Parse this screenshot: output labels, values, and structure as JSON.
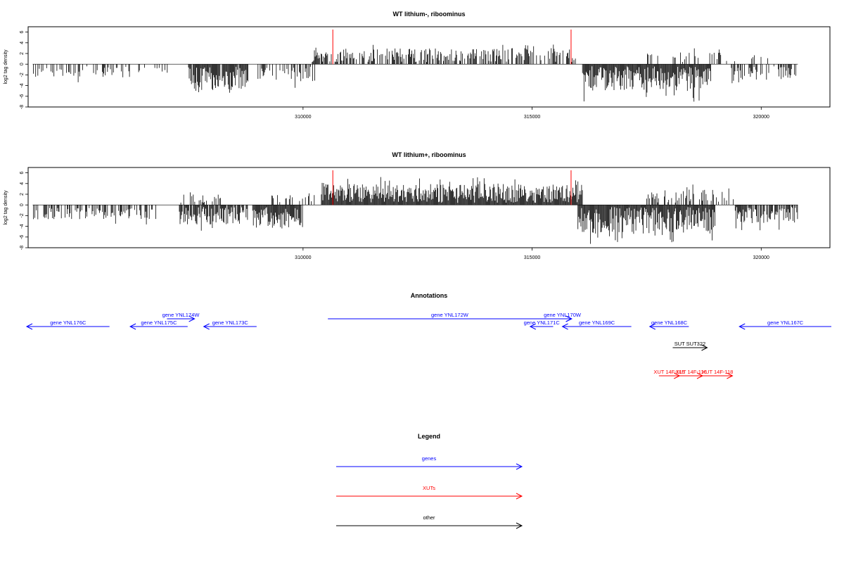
{
  "chart_data": [
    {
      "type": "bar",
      "title": "WT lithium-, riboominus",
      "ylabel": "log2 tag density",
      "xlim": [
        304000,
        321500
      ],
      "ylim": [
        -8,
        7
      ],
      "x_ticks": [
        310000,
        315000,
        320000
      ],
      "y_ticks": [
        6,
        4,
        2,
        0,
        -2,
        -4,
        -6,
        -8
      ],
      "marker_color": "#ff0000",
      "markers": [
        310650,
        315850
      ],
      "segments": [
        {
          "x_start": 304100,
          "x_end": 306300,
          "direction": "minus",
          "amplitude": 2.2,
          "density": 0.35
        },
        {
          "x_start": 306300,
          "x_end": 307300,
          "direction": "minus",
          "amplitude": 1.2,
          "density": 0.15
        },
        {
          "x_start": 307500,
          "x_end": 308800,
          "direction": "minus",
          "amplitude": 4.6,
          "density": 0.95
        },
        {
          "x_start": 309000,
          "x_end": 309600,
          "direction": "minus",
          "amplitude": 2.6,
          "density": 0.45
        },
        {
          "x_start": 309600,
          "x_end": 310300,
          "direction": "minus",
          "amplitude": 3.0,
          "density": 0.55
        },
        {
          "x_start": 310200,
          "x_end": 315950,
          "direction": "plus",
          "amplitude": 2.6,
          "density": 0.6
        },
        {
          "x_start": 316100,
          "x_end": 318900,
          "direction": "minus",
          "amplitude": 4.6,
          "density": 1.0
        },
        {
          "x_start": 319300,
          "x_end": 320800,
          "direction": "minus",
          "amplitude": 2.5,
          "density": 0.5
        },
        {
          "x_start": 317500,
          "x_end": 320200,
          "direction": "plus",
          "amplitude": 1.8,
          "density": 0.15
        }
      ]
    },
    {
      "type": "bar",
      "title": "WT lithium+, riboominus",
      "ylabel": "log2 tag density",
      "xlim": [
        304000,
        321500
      ],
      "ylim": [
        -8,
        7
      ],
      "x_ticks": [
        310000,
        315000,
        320000
      ],
      "y_ticks": [
        6,
        4,
        2,
        0,
        -2,
        -4,
        -6,
        -8
      ],
      "marker_color": "#ff0000",
      "markers": [
        310650,
        315850
      ],
      "segments": [
        {
          "x_start": 304100,
          "x_end": 306800,
          "direction": "minus",
          "amplitude": 2.3,
          "density": 0.55
        },
        {
          "x_start": 307300,
          "x_end": 308800,
          "direction": "minus",
          "amplitude": 3.3,
          "density": 0.8
        },
        {
          "x_start": 307300,
          "x_end": 308500,
          "direction": "plus",
          "amplitude": 1.6,
          "density": 0.2
        },
        {
          "x_start": 308900,
          "x_end": 310000,
          "direction": "minus",
          "amplitude": 4.0,
          "density": 0.95
        },
        {
          "x_start": 309300,
          "x_end": 310300,
          "direction": "plus",
          "amplitude": 1.8,
          "density": 0.2
        },
        {
          "x_start": 310400,
          "x_end": 316100,
          "direction": "plus",
          "amplitude": 3.5,
          "density": 1.0
        },
        {
          "x_start": 316000,
          "x_end": 319000,
          "direction": "minus",
          "amplitude": 5.0,
          "density": 1.0
        },
        {
          "x_start": 317500,
          "x_end": 319400,
          "direction": "plus",
          "amplitude": 2.6,
          "density": 0.45
        },
        {
          "x_start": 319400,
          "x_end": 320800,
          "direction": "minus",
          "amplitude": 3.0,
          "density": 0.75
        }
      ]
    }
  ],
  "annotations": {
    "title": "Annotations",
    "features": [
      {
        "label": "gene YNL176C",
        "start": 304000,
        "end": 305800,
        "strand": "-",
        "color": "#0000ff",
        "row": 1
      },
      {
        "label": "gene YNL175C",
        "start": 306250,
        "end": 307500,
        "strand": "-",
        "color": "#0000ff",
        "row": 1
      },
      {
        "label": "gene YNL174W",
        "start": 307050,
        "end": 307650,
        "strand": "+",
        "color": "#0000ff",
        "row": 0
      },
      {
        "label": "gene YNL173C",
        "start": 307850,
        "end": 309000,
        "strand": "-",
        "color": "#0000ff",
        "row": 1
      },
      {
        "label": "gene YNL172W",
        "start": 310550,
        "end": 315850,
        "strand": "+",
        "color": "#0000ff",
        "row": 0
      },
      {
        "label": "gene YNL171C",
        "start": 314950,
        "end": 315450,
        "strand": "-",
        "color": "#0000ff",
        "row": 1
      },
      {
        "label": "gene YNL170W",
        "start": 315450,
        "end": 315850,
        "strand": "+",
        "color": "#0000ff",
        "row": 0
      },
      {
        "label": "gene YNL169C",
        "start": 315650,
        "end": 317150,
        "strand": "-",
        "color": "#0000ff",
        "row": 1
      },
      {
        "label": "gene YNL168C",
        "start": 317550,
        "end": 318400,
        "strand": "-",
        "color": "#0000ff",
        "row": 1
      },
      {
        "label": "gene YNL167C",
        "start": 319500,
        "end": 321500,
        "strand": "-",
        "color": "#0000ff",
        "row": 1
      },
      {
        "label": "SUT SUT322",
        "start": 318050,
        "end": 318800,
        "strand": "+",
        "color": "#000000",
        "row": 2
      },
      {
        "label": "XUT 14F-115",
        "start": 317750,
        "end": 318200,
        "strand": "+",
        "color": "#ff0000",
        "row": 4
      },
      {
        "label": "XUT 14F-116",
        "start": 318200,
        "end": 318700,
        "strand": "+",
        "color": "#ff0000",
        "row": 4
      },
      {
        "label": "XUT 14F-118",
        "start": 318700,
        "end": 319350,
        "strand": "+",
        "color": "#ff0000",
        "row": 4
      }
    ]
  },
  "legend": {
    "title": "Legend",
    "items": [
      {
        "label": "genes",
        "color": "#0000ff"
      },
      {
        "label": "XUTs",
        "color": "#ff0000"
      },
      {
        "label": "other",
        "color": "#000000"
      }
    ]
  }
}
